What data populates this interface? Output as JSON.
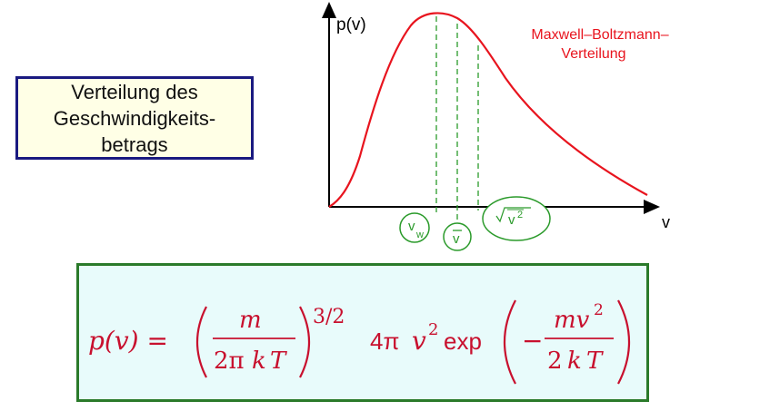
{
  "title_box": {
    "lines": [
      "Verteilung des",
      "Geschwindigkeits-",
      "betrags"
    ]
  },
  "diagram": {
    "y_axis_label": "p(v)",
    "x_axis_label": "v",
    "curve_label_line1": "Maxwell–Boltzmann–",
    "curve_label_line2": "Verteilung",
    "marker_vw": "v",
    "marker_vw_sub": "w",
    "marker_vbar": "v",
    "marker_vrms": "v",
    "marker_vrms_exp": "2"
  },
  "formula": {
    "lhs": "p(v) =",
    "num_m": "m",
    "den_2pi": "2π",
    "den_k": "k",
    "den_T": "T",
    "exponent": "3/2",
    "factor_4pi": "4π",
    "var_v": "v",
    "var_v_exp": "2",
    "exp_word": "exp",
    "minus": "−",
    "num_mv": "mv",
    "num_mv_exp": "2",
    "den2_2": "2",
    "den2_k": "k",
    "den2_T": "T"
  },
  "colors": {
    "curve": "#e8141e",
    "guides": "#2a9a2a",
    "box_border": "#1a1a80",
    "box_fill": "#ffffe6",
    "formula_border": "#2a7a2a",
    "formula_fill": "#e8fbfb",
    "formula_text": "#c8102e"
  }
}
